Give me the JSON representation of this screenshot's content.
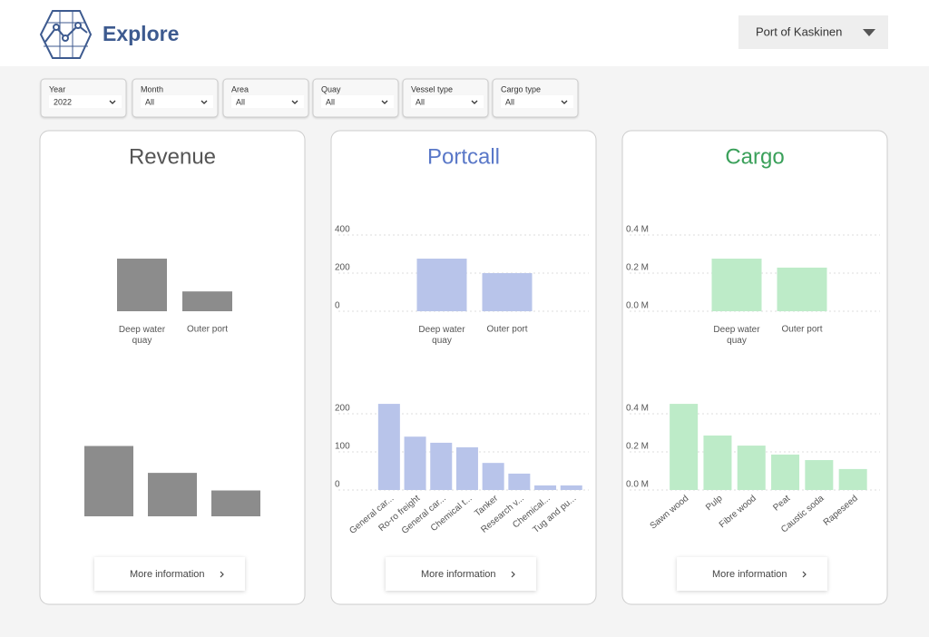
{
  "header": {
    "title": "Explore",
    "port": "Port of Kaskinen"
  },
  "filters": [
    {
      "label": "Year",
      "value": "2022"
    },
    {
      "label": "Month",
      "value": "All"
    },
    {
      "label": "Area",
      "value": "All"
    },
    {
      "label": "Quay",
      "value": "All"
    },
    {
      "label": "Vessel type",
      "value": "All"
    },
    {
      "label": "Cargo type",
      "value": "All"
    }
  ],
  "panels": [
    {
      "title": "Revenue",
      "button": "More information"
    },
    {
      "title": "Portcall",
      "button": "More information"
    },
    {
      "title": "Cargo",
      "button": "More information"
    }
  ],
  "chart_data": [
    {
      "type": "bar",
      "categories": [
        "Deep water quay",
        "Outer port"
      ],
      "values": [
        69,
        26
      ],
      "color": "#8c8c8c",
      "ylim": [
        0,
        100
      ]
    },
    {
      "type": "bar",
      "categories": [
        null,
        null,
        null
      ],
      "values": [
        68,
        42,
        25
      ],
      "color": "#8c8c8c",
      "ylim": [
        0,
        100
      ]
    },
    {
      "type": "bar",
      "categories": [
        "Deep water quay",
        "Outer port"
      ],
      "values": [
        276,
        200
      ],
      "color": "#b8c4ea",
      "ylim": [
        0,
        400
      ],
      "yticks": [
        0,
        200,
        400
      ],
      "grid": true
    },
    {
      "type": "bar",
      "categories": [
        "General car...",
        "Ro-ro freight",
        "General car...",
        "Chemical t...",
        "Tanker",
        "Research v...",
        "Chemical...",
        "Tug and pu..."
      ],
      "values": [
        226,
        140,
        124,
        112,
        71,
        43,
        12,
        12
      ],
      "color": "#b8c4ea",
      "ylim": [
        0,
        200
      ],
      "yticks": [
        0,
        100,
        200
      ],
      "grid": true
    },
    {
      "type": "bar",
      "categories": [
        "Deep water quay",
        "Outer port"
      ],
      "values": [
        276000,
        229000
      ],
      "color": "#bdebc8",
      "ylim": [
        0,
        400000
      ],
      "yticks": [
        {
          "value": 0,
          "label": "0.0 M"
        },
        {
          "value": 200000,
          "label": "0.2 M"
        },
        {
          "value": 400000,
          "label": "0.4 M"
        }
      ],
      "grid": true
    },
    {
      "type": "bar",
      "categories": [
        "Sawn wood",
        "Pulp",
        "Fibre wood",
        "Peat",
        "Caustic soda",
        "Rapeseed"
      ],
      "values": [
        452000,
        286000,
        233000,
        186000,
        157000,
        110000
      ],
      "color": "#bdebc8",
      "ylim": [
        0,
        400000
      ],
      "yticks": [
        {
          "value": 0,
          "label": "0.0 M"
        },
        {
          "value": 200000,
          "label": "0.2 M"
        },
        {
          "value": 400000,
          "label": "0.4 M"
        }
      ],
      "grid": true
    }
  ]
}
